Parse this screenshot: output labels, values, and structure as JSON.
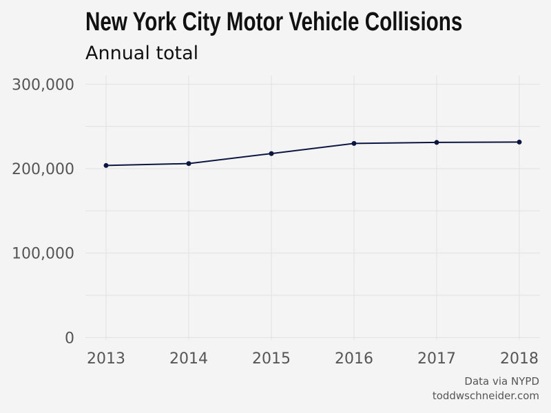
{
  "chart_data": {
    "type": "line",
    "title": "New York City Motor Vehicle Collisions",
    "subtitle": "Annual total",
    "xlabel": "",
    "ylabel": "",
    "x": [
      2013,
      2014,
      2015,
      2016,
      2017,
      2018
    ],
    "x_tick_labels": [
      "2013",
      "2014",
      "2015",
      "2016",
      "2017",
      "2018"
    ],
    "series": [
      {
        "values": [
          203700,
          206000,
          217800,
          229800,
          231000,
          231400
        ]
      }
    ],
    "y_ticks": [
      0,
      100000,
      200000,
      300000
    ],
    "y_tick_labels": [
      "0",
      "100,000",
      "200,000",
      "300,000"
    ],
    "xlim": [
      2012.75,
      2018.25
    ],
    "ylim": [
      -3000,
      310000
    ],
    "grid": true,
    "legend": "none",
    "colors": {
      "background": "#f4f4f4",
      "line": "#0b1640",
      "grid": "#e0e0e0"
    }
  },
  "caption": {
    "line1": "Data via NYPD",
    "line2": "toddwschneider.com"
  }
}
